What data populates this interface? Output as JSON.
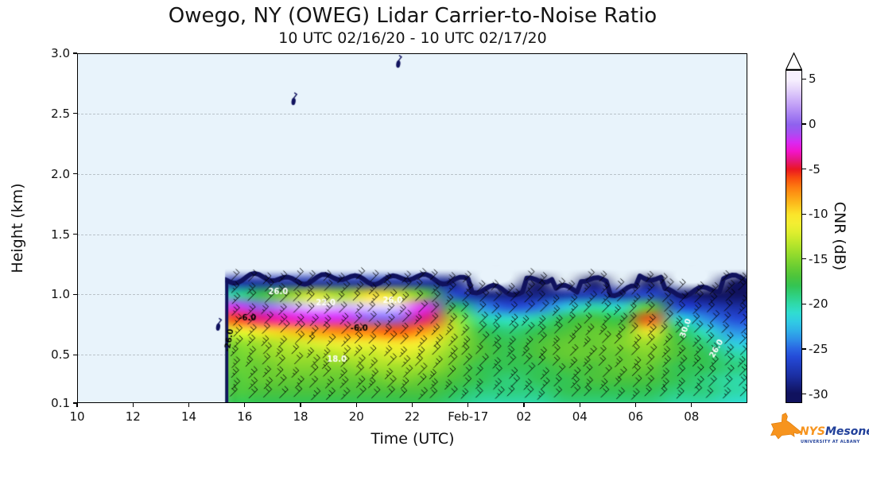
{
  "chart_data": {
    "type": "heatmap",
    "title": "Owego, NY (OWEG) Lidar Carrier-to-Noise Ratio",
    "subtitle": "10 UTC 02/16/20 - 10 UTC 02/17/20",
    "xlabel": "Time (UTC)",
    "ylabel": "Height (km)",
    "x_range": [
      10,
      34
    ],
    "y_range": [
      0.1,
      3.0
    ],
    "background": "#e8f3fb",
    "x_ticks": [
      {
        "v": 10,
        "label": "10"
      },
      {
        "v": 12,
        "label": "12"
      },
      {
        "v": 14,
        "label": "14"
      },
      {
        "v": 16,
        "label": "16"
      },
      {
        "v": 18,
        "label": "18"
      },
      {
        "v": 20,
        "label": "20"
      },
      {
        "v": 22,
        "label": "22"
      },
      {
        "v": 24,
        "label": "Feb-17"
      },
      {
        "v": 26,
        "label": "02"
      },
      {
        "v": 28,
        "label": "04"
      },
      {
        "v": 30,
        "label": "06"
      },
      {
        "v": 32,
        "label": "08"
      }
    ],
    "y_ticks": [
      {
        "v": 0.1,
        "label": "0.1"
      },
      {
        "v": 0.5,
        "label": "0.5"
      },
      {
        "v": 1.0,
        "label": "1.0"
      },
      {
        "v": 1.5,
        "label": "1.5"
      },
      {
        "v": 2.0,
        "label": "2.0"
      },
      {
        "v": 2.5,
        "label": "2.5"
      },
      {
        "v": 3.0,
        "label": "3.0"
      }
    ],
    "grid": {
      "t_start": 15.3,
      "t_first_col": 10,
      "col_dt": 1,
      "heights": [
        0.1,
        0.2,
        0.3,
        0.4,
        0.5,
        0.6,
        0.7,
        0.8,
        0.9,
        1.0,
        1.1,
        1.2
      ],
      "values": [
        [
          null,
          null,
          null,
          null,
          null,
          -18,
          -18,
          -18,
          -18,
          -18,
          -18,
          -18,
          -18,
          -19,
          -20,
          -20,
          -20,
          -19,
          -19,
          -19,
          -19,
          -20,
          -20,
          -21
        ],
        [
          null,
          null,
          null,
          null,
          null,
          -17,
          -17,
          -17,
          -17,
          -17,
          -17,
          -17,
          -17,
          -18,
          -19,
          -19,
          -19,
          -18,
          -18,
          -18,
          -18,
          -19,
          -19,
          -20
        ],
        [
          null,
          null,
          null,
          null,
          null,
          -17,
          -16,
          -16,
          -16,
          -16,
          -16,
          -15,
          -16,
          -17,
          -18,
          -19,
          -18,
          -18,
          -17,
          -17,
          -17,
          -18,
          -19,
          -20
        ],
        [
          null,
          null,
          null,
          null,
          null,
          -16,
          -16,
          -15,
          -15,
          -15,
          -14,
          -14,
          -14,
          -16,
          -18,
          -18,
          -18,
          -17,
          -17,
          -16,
          -16,
          -18,
          -18,
          -19
        ],
        [
          null,
          null,
          null,
          null,
          null,
          -16,
          -15,
          -14,
          -14,
          -13,
          -13,
          -12,
          -13,
          -15,
          -17,
          -18,
          -17,
          -16,
          -16,
          -16,
          -15,
          -17,
          -18,
          -20
        ],
        [
          null,
          null,
          null,
          null,
          null,
          -15,
          -14,
          -13,
          -12,
          -11,
          -11,
          -10,
          -11,
          -14,
          -17,
          -18,
          -17,
          -16,
          -16,
          -15,
          -14,
          -17,
          -19,
          -22
        ],
        [
          null,
          null,
          null,
          null,
          null,
          -12,
          -10,
          -9,
          -8,
          -7,
          -7,
          -6,
          -8,
          -13,
          -18,
          -19,
          -18,
          -17,
          -16,
          -16,
          -10,
          -18,
          -21,
          -24
        ],
        [
          null,
          null,
          null,
          null,
          null,
          -6,
          -4,
          -3,
          -2,
          -2,
          0,
          0,
          -4,
          -14,
          -20,
          -21,
          -20,
          -18,
          -17,
          -18,
          -6,
          -21,
          -24,
          -26
        ],
        [
          null,
          null,
          null,
          null,
          null,
          -2,
          0,
          2,
          4,
          3,
          4,
          4,
          -2,
          -18,
          -24,
          -26,
          -25,
          -22,
          -20,
          -21,
          -16,
          -26,
          -27,
          -28
        ],
        [
          null,
          null,
          null,
          null,
          null,
          -20,
          -18,
          -15,
          -12,
          -14,
          -10,
          -12,
          -16,
          -26,
          -29,
          -29,
          -29,
          -28,
          -27,
          -28,
          -26,
          -29,
          -30,
          -30
        ],
        [
          null,
          null,
          null,
          null,
          null,
          -28,
          -28,
          -28,
          -28,
          -28,
          -28,
          -28,
          -28,
          -29,
          null,
          null,
          -30,
          null,
          -30,
          null,
          -30,
          null,
          null,
          -30
        ],
        [
          null,
          null,
          null,
          null,
          null,
          null,
          null,
          null,
          null,
          null,
          null,
          null,
          null,
          null,
          null,
          null,
          null,
          null,
          null,
          null,
          null,
          null,
          null,
          null
        ]
      ]
    },
    "colorbar": {
      "label": "CNR (dB)",
      "vmin": -30,
      "vmax": 5,
      "ticks": [
        5,
        0,
        -5,
        -10,
        -15,
        -20,
        -25,
        -30
      ],
      "over_color": "#ffffff",
      "stops": [
        [
          -30,
          "#10125e"
        ],
        [
          -28,
          "#1b2fa3"
        ],
        [
          -26,
          "#2449d6"
        ],
        [
          -25,
          "#2a66e3"
        ],
        [
          -24,
          "#2e8ee8"
        ],
        [
          -23,
          "#2fb0e8"
        ],
        [
          -22,
          "#30cbe4"
        ],
        [
          -21,
          "#30ddd0"
        ],
        [
          -20,
          "#2fd9a8"
        ],
        [
          -19,
          "#2fcf7d"
        ],
        [
          -18,
          "#34c453"
        ],
        [
          -17,
          "#4cc43c"
        ],
        [
          -16,
          "#66cc33"
        ],
        [
          -15,
          "#84d62e"
        ],
        [
          -14,
          "#a3e02b"
        ],
        [
          -13,
          "#c2e82b"
        ],
        [
          -12,
          "#e0ee2e"
        ],
        [
          -11,
          "#f4ee32"
        ],
        [
          -10,
          "#fbe42a"
        ],
        [
          -9,
          "#fcc21e"
        ],
        [
          -8,
          "#fd9f15"
        ],
        [
          -7,
          "#fd7c10"
        ],
        [
          -6,
          "#f84e0e"
        ],
        [
          -5,
          "#ea1721"
        ],
        [
          -4,
          "#e5177c"
        ],
        [
          -3,
          "#f214c8"
        ],
        [
          -2,
          "#d929f2"
        ],
        [
          -1,
          "#a94df2"
        ],
        [
          0,
          "#8f62ee"
        ],
        [
          1,
          "#a57ef2"
        ],
        [
          2,
          "#bd9af6"
        ],
        [
          3,
          "#d2b8f9"
        ],
        [
          4,
          "#e6d6fb"
        ],
        [
          5,
          "#f7f0fe"
        ]
      ]
    },
    "wind_barbs": true,
    "speed_labels": [
      {
        "t": 17.2,
        "h": 1.02,
        "text": "26.0",
        "rot": 0
      },
      {
        "t": 18.9,
        "h": 0.93,
        "text": "22.0",
        "rot": 0
      },
      {
        "t": 19.3,
        "h": 0.46,
        "text": "18.0",
        "rot": 0
      },
      {
        "t": 21.3,
        "h": 0.95,
        "text": "26.0",
        "rot": 0
      },
      {
        "t": 31.8,
        "h": 0.72,
        "text": "30.0",
        "rot": -70
      },
      {
        "t": 32.9,
        "h": 0.55,
        "text": "26.0",
        "rot": -60
      }
    ],
    "cnr_labels": [
      {
        "t": 16.1,
        "h": 0.8,
        "text": "-6.0",
        "rot": 0
      },
      {
        "t": 15.45,
        "h": 0.62,
        "text": "-26.0",
        "rot": -80
      },
      {
        "t": 20.1,
        "h": 0.72,
        "text": "-6.0",
        "rot": 0
      }
    ],
    "specks": [
      {
        "t": 15.05,
        "h": 0.73
      },
      {
        "t": 17.75,
        "h": 2.6
      },
      {
        "t": 21.5,
        "h": 2.91
      }
    ]
  },
  "logo": {
    "name_part1": "NYS",
    "name_part2": "Mesonet",
    "tagline": "UNIVERSITY AT ALBANY"
  }
}
